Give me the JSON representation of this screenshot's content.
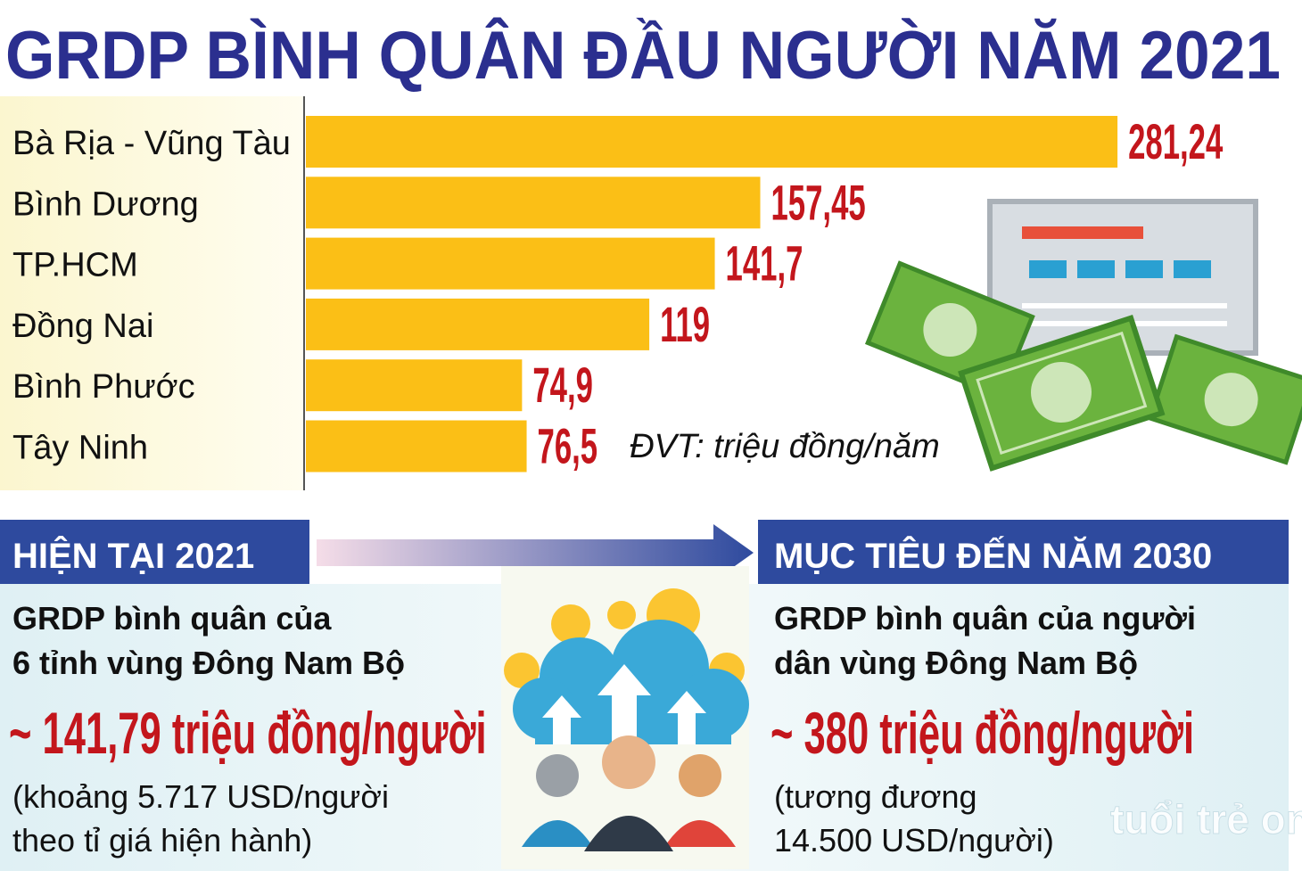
{
  "chart_data": {
    "type": "bar",
    "orientation": "horizontal",
    "title": "GRDP BÌNH QUÂN ĐẦU NGƯỜI NĂM 2021",
    "categories": [
      "Bà Rịa - Vũng Tàu",
      "Bình Dương",
      "TP.HCM",
      "Đồng Nai",
      "Bình Phước",
      "Tây Ninh"
    ],
    "values": [
      281.24,
      157.45,
      141.7,
      119,
      74.9,
      76.5
    ],
    "value_labels": [
      "281,24",
      "157,45",
      "141,7",
      "119",
      "74,9",
      "76,5"
    ],
    "color": "#fbbf16",
    "label_color": "#c3161c",
    "unit_note": "ĐVT: triệu đồng/năm"
  },
  "current": {
    "heading": "HIỆN TẠI 2021",
    "description": [
      "GRDP bình quân của",
      "6 tỉnh vùng Đông Nam Bộ"
    ],
    "amount": "~ 141,79 triệu đồng/người",
    "note": [
      "(khoảng 5.717 USD/người",
      "theo tỉ giá hiện hành)"
    ]
  },
  "target": {
    "heading": "MỤC TIÊU ĐẾN NĂM 2030",
    "description": [
      "GRDP bình quân của người",
      "dân vùng Đông Nam Bộ"
    ],
    "amount": "~ 380 triệu đồng/người",
    "note": [
      "(tương đương",
      "14.500 USD/người)"
    ]
  },
  "watermark": "tuổi trẻ online"
}
